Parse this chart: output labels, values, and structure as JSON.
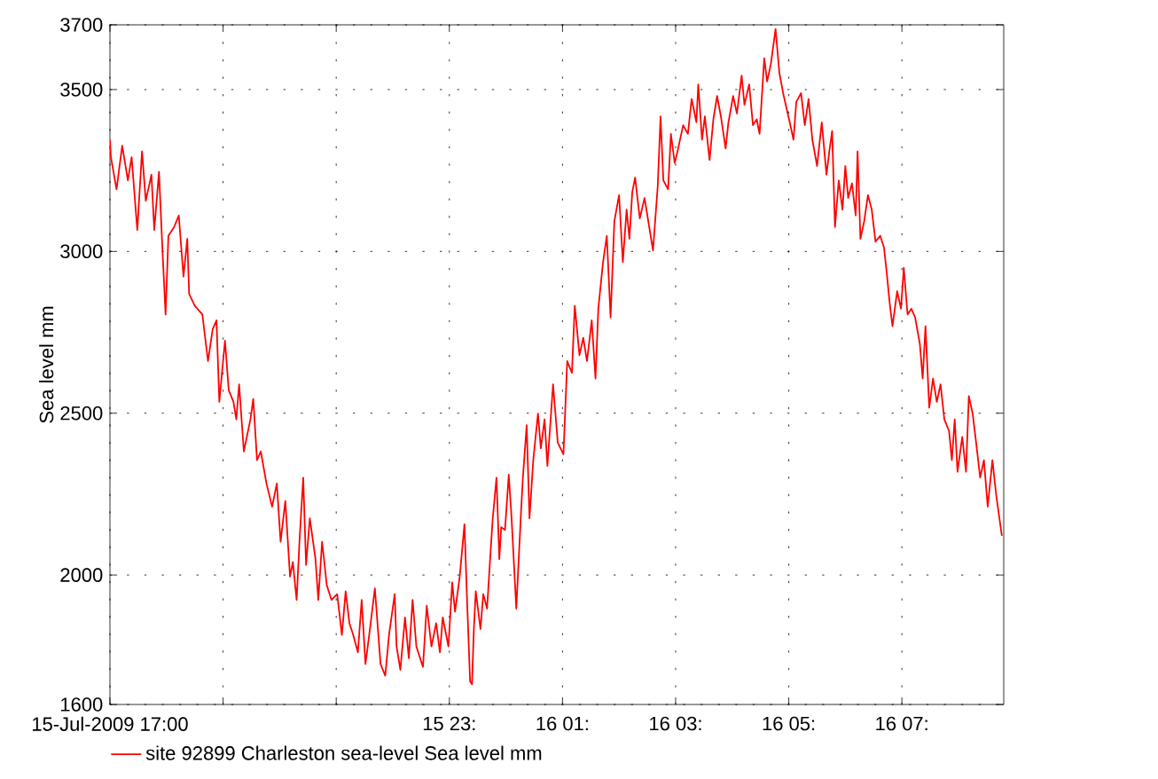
{
  "chart_data": {
    "type": "line",
    "ylabel": "Sea level mm",
    "xlim": [
      "2009-07-15T17:00",
      "2009-07-16T08:48"
    ],
    "ylim": [
      1600,
      3700
    ],
    "xticks": [
      {
        "value": "2009-07-15T17:00",
        "label": "15-Jul-2009 17:00"
      },
      {
        "value": "2009-07-15T19:00",
        "label": null
      },
      {
        "value": "2009-07-15T21:00",
        "label": null
      },
      {
        "value": "2009-07-15T23:00",
        "label": "15 23:"
      },
      {
        "value": "2009-07-16T01:00",
        "label": "16 01:"
      },
      {
        "value": "2009-07-16T03:00",
        "label": "16 03:"
      },
      {
        "value": "2009-07-16T05:00",
        "label": "16 05:"
      },
      {
        "value": "2009-07-16T07:00",
        "label": "16 07:"
      }
    ],
    "yticks": [
      1600,
      2000,
      2500,
      3000,
      3500,
      3700
    ],
    "grid": true,
    "legend": "bottom",
    "series": [
      {
        "name": "site 92899 Charleston sea-level   Sea level mm",
        "color": "#ff0000",
        "x": [
          "2009-07-15T17:00",
          "2009-07-15T17:01",
          "2009-07-15T17:07",
          "2009-07-15T17:13",
          "2009-07-15T17:19",
          "2009-07-15T17:23",
          "2009-07-15T17:29",
          "2009-07-15T17:34",
          "2009-07-15T17:38",
          "2009-07-15T17:44",
          "2009-07-15T17:47",
          "2009-07-15T17:52",
          "2009-07-15T17:56",
          "2009-07-15T17:59",
          "2009-07-15T18:02",
          "2009-07-15T18:08",
          "2009-07-15T18:13",
          "2009-07-15T18:18",
          "2009-07-15T18:22",
          "2009-07-15T18:24",
          "2009-07-15T18:30",
          "2009-07-15T18:38",
          "2009-07-15T18:44",
          "2009-07-15T18:49",
          "2009-07-15T18:53",
          "2009-07-15T18:56",
          "2009-07-15T19:02",
          "2009-07-15T19:06",
          "2009-07-15T19:11",
          "2009-07-15T19:14",
          "2009-07-15T19:17",
          "2009-07-15T19:22",
          "2009-07-15T19:29",
          "2009-07-15T19:32",
          "2009-07-15T19:36",
          "2009-07-15T19:40",
          "2009-07-15T19:46",
          "2009-07-15T19:52",
          "2009-07-15T19:57",
          "2009-07-15T20:01",
          "2009-07-15T20:06",
          "2009-07-15T20:11",
          "2009-07-15T20:14",
          "2009-07-15T20:18",
          "2009-07-15T20:21",
          "2009-07-15T20:25",
          "2009-07-15T20:28",
          "2009-07-15T20:32",
          "2009-07-15T20:38",
          "2009-07-15T20:41",
          "2009-07-15T20:45",
          "2009-07-15T20:50",
          "2009-07-15T20:55",
          "2009-07-15T21:01",
          "2009-07-15T21:06",
          "2009-07-15T21:10",
          "2009-07-15T21:14",
          "2009-07-15T21:18",
          "2009-07-15T21:23",
          "2009-07-15T21:27",
          "2009-07-15T21:31",
          "2009-07-15T21:35",
          "2009-07-15T21:41",
          "2009-07-15T21:47",
          "2009-07-15T21:52",
          "2009-07-15T21:56",
          "2009-07-15T22:02",
          "2009-07-15T22:04",
          "2009-07-15T22:08",
          "2009-07-15T22:13",
          "2009-07-15T22:17",
          "2009-07-15T22:21",
          "2009-07-15T22:25",
          "2009-07-15T22:32",
          "2009-07-15T22:36",
          "2009-07-15T22:41",
          "2009-07-15T22:46",
          "2009-07-15T22:50",
          "2009-07-15T22:53",
          "2009-07-15T22:59",
          "2009-07-15T23:03",
          "2009-07-15T23:06",
          "2009-07-15T23:11",
          "2009-07-15T23:16",
          "2009-07-15T23:19",
          "2009-07-15T23:22",
          "2009-07-15T23:24",
          "2009-07-15T23:26",
          "2009-07-15T23:28",
          "2009-07-15T23:33",
          "2009-07-15T23:36",
          "2009-07-15T23:40",
          "2009-07-15T23:44",
          "2009-07-15T23:46",
          "2009-07-15T23:50",
          "2009-07-15T23:53",
          "2009-07-15T23:55",
          "2009-07-15T23:59",
          "2009-07-16T00:03",
          "2009-07-16T00:06",
          "2009-07-16T00:11",
          "2009-07-16T00:16",
          "2009-07-16T00:18",
          "2009-07-16T00:22",
          "2009-07-16T00:25",
          "2009-07-16T00:29",
          "2009-07-16T00:34",
          "2009-07-16T00:37",
          "2009-07-16T00:41",
          "2009-07-16T00:44",
          "2009-07-16T00:50",
          "2009-07-16T00:55",
          "2009-07-16T01:01",
          "2009-07-16T01:05",
          "2009-07-16T01:10",
          "2009-07-16T01:13",
          "2009-07-16T01:18",
          "2009-07-16T01:22",
          "2009-07-16T01:26",
          "2009-07-16T01:31",
          "2009-07-16T01:35",
          "2009-07-16T01:38",
          "2009-07-16T01:43",
          "2009-07-16T01:47",
          "2009-07-16T01:51",
          "2009-07-16T01:55",
          "2009-07-16T02:00",
          "2009-07-16T02:04",
          "2009-07-16T02:08",
          "2009-07-16T02:11",
          "2009-07-16T02:14",
          "2009-07-16T02:17",
          "2009-07-16T02:22",
          "2009-07-16T02:27",
          "2009-07-16T02:31",
          "2009-07-16T02:36",
          "2009-07-16T02:41",
          "2009-07-16T02:44",
          "2009-07-16T02:47",
          "2009-07-16T02:52",
          "2009-07-16T02:55",
          "2009-07-16T02:59",
          "2009-07-16T03:02",
          "2009-07-16T03:08",
          "2009-07-16T03:13",
          "2009-07-16T03:17",
          "2009-07-16T03:22",
          "2009-07-16T03:24",
          "2009-07-16T03:28",
          "2009-07-16T03:31",
          "2009-07-16T03:36",
          "2009-07-16T03:40",
          "2009-07-16T03:44",
          "2009-07-16T03:48",
          "2009-07-16T03:53",
          "2009-07-16T03:56",
          "2009-07-16T04:01",
          "2009-07-16T04:05",
          "2009-07-16T04:10",
          "2009-07-16T04:13",
          "2009-07-16T04:18",
          "2009-07-16T04:22",
          "2009-07-16T04:26",
          "2009-07-16T04:29",
          "2009-07-16T04:34",
          "2009-07-16T04:37",
          "2009-07-16T04:41",
          "2009-07-16T04:46",
          "2009-07-16T04:50",
          "2009-07-16T04:54",
          "2009-07-16T05:01",
          "2009-07-16T05:05",
          "2009-07-16T05:08",
          "2009-07-16T05:13",
          "2009-07-16T05:17",
          "2009-07-16T05:21",
          "2009-07-16T05:25",
          "2009-07-16T05:30",
          "2009-07-16T05:35",
          "2009-07-16T05:40",
          "2009-07-16T05:43",
          "2009-07-16T05:46",
          "2009-07-16T05:49",
          "2009-07-16T05:53",
          "2009-07-16T05:57",
          "2009-07-16T06:00",
          "2009-07-16T06:03",
          "2009-07-16T06:07",
          "2009-07-16T06:11",
          "2009-07-16T06:13",
          "2009-07-16T06:16",
          "2009-07-16T06:20",
          "2009-07-16T06:24",
          "2009-07-16T06:28",
          "2009-07-16T06:32",
          "2009-07-16T06:37",
          "2009-07-16T06:41",
          "2009-07-16T06:44",
          "2009-07-16T06:47",
          "2009-07-16T06:50",
          "2009-07-16T06:55",
          "2009-07-16T06:59",
          "2009-07-16T07:02",
          "2009-07-16T07:06",
          "2009-07-16T07:10",
          "2009-07-16T07:14",
          "2009-07-16T07:19",
          "2009-07-16T07:22",
          "2009-07-16T07:25",
          "2009-07-16T07:29",
          "2009-07-16T07:33",
          "2009-07-16T07:37",
          "2009-07-16T07:41",
          "2009-07-16T07:45",
          "2009-07-16T07:50",
          "2009-07-16T07:53",
          "2009-07-16T07:56",
          "2009-07-16T07:59",
          "2009-07-16T08:04",
          "2009-07-16T08:08",
          "2009-07-16T08:11",
          "2009-07-16T08:15",
          "2009-07-16T08:18",
          "2009-07-16T08:23",
          "2009-07-16T08:27",
          "2009-07-16T08:31",
          "2009-07-16T08:36",
          "2009-07-16T08:40",
          "2009-07-16T08:46"
        ],
        "values": [
          3345,
          3291,
          3192,
          3327,
          3219,
          3291,
          3066,
          3309,
          3156,
          3237,
          3066,
          3246,
          2985,
          2805,
          3048,
          3075,
          3111,
          2922,
          3039,
          2868,
          2832,
          2805,
          2661,
          2760,
          2787,
          2535,
          2724,
          2571,
          2535,
          2481,
          2589,
          2382,
          2481,
          2544,
          2355,
          2382,
          2283,
          2211,
          2283,
          2103,
          2229,
          1995,
          2040,
          1923,
          2103,
          2301,
          2031,
          2175,
          2049,
          1923,
          2103,
          1968,
          1923,
          1941,
          1815,
          1950,
          1851,
          1815,
          1761,
          1923,
          1725,
          1815,
          1959,
          1725,
          1689,
          1815,
          1941,
          1779,
          1707,
          1869,
          1743,
          1923,
          1779,
          1716,
          1905,
          1779,
          1851,
          1761,
          1869,
          1779,
          1977,
          1887,
          1995,
          2157,
          1905,
          1671,
          1662,
          1833,
          1950,
          1833,
          1941,
          1896,
          2085,
          2175,
          2301,
          2049,
          2148,
          2139,
          2310,
          2175,
          1896,
          2193,
          2301,
          2463,
          2175,
          2355,
          2499,
          2391,
          2481,
          2337,
          2589,
          2409,
          2373,
          2661,
          2625,
          2832,
          2679,
          2733,
          2661,
          2787,
          2607,
          2823,
          2967,
          3048,
          2796,
          3093,
          3174,
          2967,
          3129,
          3039,
          3183,
          3228,
          3102,
          3165,
          3093,
          3003,
          3201,
          3417,
          3219,
          3192,
          3363,
          3273,
          3309,
          3390,
          3363,
          3471,
          3399,
          3516,
          3345,
          3417,
          3282,
          3408,
          3480,
          3417,
          3318,
          3399,
          3480,
          3426,
          3543,
          3453,
          3516,
          3390,
          3408,
          3363,
          3597,
          3525,
          3579,
          3687,
          3552,
          3489,
          3399,
          3345,
          3462,
          3489,
          3390,
          3471,
          3345,
          3264,
          3399,
          3237,
          3309,
          3372,
          3075,
          3219,
          3129,
          3264,
          3165,
          3210,
          3111,
          3309,
          3039,
          3093,
          3174,
          3129,
          3030,
          3048,
          3012,
          2931,
          2841,
          2769,
          2877,
          2823,
          2949,
          2805,
          2823,
          2796,
          2715,
          2607,
          2769,
          2517,
          2607,
          2535,
          2589,
          2481,
          2445,
          2355,
          2481,
          2319,
          2427,
          2319,
          2553,
          2499,
          2427,
          2301,
          2355,
          2211,
          2355,
          2247,
          2121
        ]
      }
    ]
  }
}
